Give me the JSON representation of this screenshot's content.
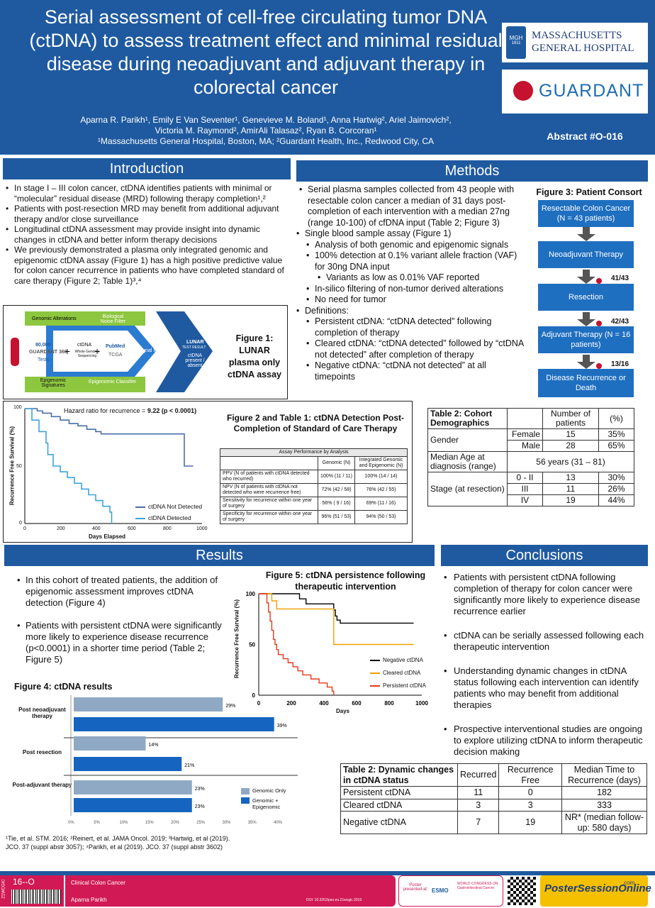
{
  "header": {
    "title": "Serial assessment of cell-free circulating tumor DNA (ctDNA) to assess treatment effect and minimal residual disease during neoadjuvant and adjuvant therapy in colorectal cancer",
    "authors_line1": "Aparna R. Parikh¹, Emily E Van Seventer¹, Genevieve M. Boland¹, Anna Hartwig², Ariel Jaimovich²,",
    "authors_line2": "Victoria M. Raymond², AmirAli Talasaz², Ryan B. Corcoran¹",
    "affiliations": "¹Massachusetts General Hospital, Boston, MA; ²Guardant Health, Inc., Redwood City, CA",
    "abstract_id": "Abstract #O-016",
    "mgh_logo_line1": "MASSACHUSETTS",
    "mgh_logo_line2": "GENERAL HOSPITAL",
    "mgh_seal": "MGH",
    "mgh_year": "1811",
    "guardant_logo": "GUARDANT"
  },
  "introduction": {
    "heading": "Introduction",
    "bullets": [
      "In stage I – III colon cancer, ctDNA identifies patients with minimal or “molecular” residual disease (MRD) following therapy completion¹,²",
      "Patients with post-resection MRD may benefit from additional adjuvant therapy and/or close surveillance",
      "Longitudinal ctDNA assessment may provide insight into dynamic changes in ctDNA and better inform therapy decisions",
      "We previously demonstrated a plasma only integrated genomic and epigenomic ctDNA assay (Figure 1) has a high positive predictive value for colon cancer recurrence in patients who have completed standard of care therapy (Figure 2; Table 1)³,⁴"
    ]
  },
  "figure1": {
    "caption": "Figure 1: LUNAR plasma only ctDNA assay",
    "genomic_alterations": "Genomic Alterations",
    "biological_noise": "Biological Noise Filter",
    "epigenomic_signatures": "Epigenomic Signatures",
    "epigenomic_classifier": "Epigenomic Classifier",
    "signal_integration": "Signal Integration",
    "tests_count": "80,000",
    "guardant360": "GUARDANT 360",
    "tests_label": "Tests",
    "ctdna_label": "ctDNA",
    "wgs_label": "Whole Genome Sequencing",
    "pubmed": "PubMed",
    "tcga": "TCGA",
    "lunar": "LUNAR",
    "test_result": "TEST RESULT",
    "result_text": "ctDNA present / absent"
  },
  "figure2": {
    "caption": "Figure 2 and Table 1: ctDNA Detection Post-Completion of Standard of Care Therapy",
    "hazard_label": "Hazard ratio for recurrence =",
    "hazard_value": "9.22 (p < 0.0001)",
    "ylabel": "Recurrence Free Survival (%)",
    "xlabel": "Days Elapsed",
    "legend_not_detected": "ctDNA Not Detected",
    "legend_detected": "ctDNA Detected",
    "y_ticks": [
      "100",
      "50",
      "0"
    ],
    "x_ticks": [
      "0",
      "200",
      "400",
      "600",
      "800",
      "1000"
    ],
    "table_title": "Assay Performance by Analysis",
    "table_head": [
      "",
      "Genomic (N)",
      "Integrated Genomic and Epigenomic (N)"
    ],
    "table_rows": [
      [
        "PPV (N of patients with ctDNA detected who recurred)",
        "100% (11 / 11)",
        "100% (14 / 14)"
      ],
      [
        "NPV (N of patients with ctDNA not detected who were recurrence free)",
        "72% (42 / 58)",
        "76% (42 / 55)"
      ],
      [
        "Sensitivity for recurrence within one year of surgery",
        "56% ( 9 / 16)",
        "69% (11 / 16)"
      ],
      [
        "Specificity for recurrence within one year of surgery",
        "96% (51 / 53)",
        "94% (50 / 53)"
      ]
    ]
  },
  "methods": {
    "heading": "Methods",
    "items": [
      {
        "level": 0,
        "text": "Serial plasma samples collected from 43 people with resectable colon cancer a median of 31 days post-completion of each intervention with a median 27ng (range 10-100) of cfDNA input (Table 2; Figure 3)"
      },
      {
        "level": 0,
        "text": "Single blood sample assay (Figure 1)"
      },
      {
        "level": 1,
        "text": "Analysis of both genomic and epigenomic signals"
      },
      {
        "level": 1,
        "text": "100% detection at 0.1% variant allele fraction (VAF) for 30ng DNA input"
      },
      {
        "level": 2,
        "text": "Variants as low as 0.01% VAF reported"
      },
      {
        "level": 1,
        "text": "In-silico filtering of non-tumor derived alterations"
      },
      {
        "level": 1,
        "text": "No need for tumor"
      },
      {
        "level": 0,
        "text": "Definitions:"
      },
      {
        "level": 1,
        "text": "Persistent ctDNA: “ctDNA detected” following completion of therapy"
      },
      {
        "level": 1,
        "text": "Cleared ctDNA: “ctDNA detected” followed by “ctDNA not detected” after completion of therapy"
      },
      {
        "level": 1,
        "text": "Negative ctDNA: “ctDNA not detected” at all timepoints"
      }
    ]
  },
  "figure3": {
    "caption": "Figure 3: Patient Consort",
    "boxes": [
      "Resectable Colon Cancer (N = 43 patients)",
      "Neoadjuvant Therapy",
      "Resection",
      "Adjuvant Therapy (N = 16 patients)",
      "Disease Recurrence or Death"
    ],
    "ratios": [
      "41/43",
      "42/43",
      "13/16"
    ]
  },
  "table2_demo": {
    "title": "Table 2: Cohort Demographics",
    "col_n": "Number of patients",
    "col_pct": "(%)",
    "gender": "Gender",
    "female": [
      "Female",
      "15",
      "35%"
    ],
    "male": [
      "Male",
      "28",
      "65%"
    ],
    "age_label": "Median Age at diagnosis (range)",
    "age_value": "56 years (31 – 81)",
    "stage": "Stage (at resection)",
    "stage_rows": [
      [
        "0 - II",
        "13",
        "30%"
      ],
      [
        "III",
        "11",
        "26%"
      ],
      [
        "IV",
        "19",
        "44%"
      ]
    ]
  },
  "results": {
    "heading": "Results",
    "bullets": [
      "In this cohort of treated patients, the addition of epigenomic assessment improves ctDNA detection (Figure 4)",
      "Patients with persistent ctDNA were significantly more likely to experience disease recurrence (p<0.0001) in a shorter time period (Table 2; Figure 5)"
    ]
  },
  "figure4": {
    "caption": "Figure 4: ctDNA results",
    "groups": [
      "Post neoadjuvant therapy",
      "Post resection",
      "Post-adjuvant therapy"
    ],
    "legend": [
      "Genomic Only",
      "Genomic + Epigenomic"
    ],
    "x_ticks": [
      "0%",
      "5%",
      "10%",
      "15%",
      "20%",
      "25%",
      "30%",
      "35%",
      "40%"
    ],
    "colors": {
      "genomic": "#8fa9c4",
      "integrated": "#1565c0"
    }
  },
  "chart_data": [
    {
      "type": "bar",
      "orientation": "horizontal",
      "title": "Figure 4: ctDNA results",
      "categories": [
        "Post neoadjuvant therapy",
        "Post resection",
        "Post-adjuvant therapy"
      ],
      "series": [
        {
          "name": "Genomic Only",
          "values": [
            29,
            14,
            23
          ]
        },
        {
          "name": "Genomic + Epigenomic",
          "values": [
            39,
            21,
            23
          ]
        }
      ],
      "data_labels": [
        "29%",
        "39%",
        "14%",
        "21%",
        "23%",
        "23%"
      ],
      "xlim": [
        0,
        40
      ],
      "legend": "right"
    },
    {
      "type": "line",
      "title": "Figure 5: ctDNA persistence following therapeutic intervention",
      "xlabel": "Days",
      "ylabel": "Recurrence Free Survival (%)",
      "xlim": [
        0,
        1000
      ],
      "ylim": [
        0,
        100
      ],
      "x_ticks": [
        "0",
        "200",
        "400",
        "600",
        "800",
        "1000"
      ],
      "y_ticks": [
        "0",
        "50",
        "100"
      ],
      "legend": "bottom-right",
      "series": [
        {
          "name": "Negative ctDNA",
          "color": "#000000",
          "x": [
            0,
            230,
            250,
            270,
            290,
            440,
            460,
            470,
            480,
            500,
            950
          ],
          "y": [
            100,
            100,
            95,
            95,
            90,
            90,
            84,
            78,
            74,
            71,
            71
          ]
        },
        {
          "name": "Cleared ctDNA",
          "color": "#f0a000",
          "x": [
            0,
            40,
            80,
            110,
            250,
            440,
            460,
            950
          ],
          "y": [
            100,
            100,
            93,
            85,
            85,
            85,
            50,
            50
          ]
        },
        {
          "name": "Persistent ctDNA",
          "color": "#e5391b",
          "x": [
            0,
            50,
            60,
            70,
            80,
            90,
            100,
            110,
            120,
            150,
            180,
            210,
            240,
            270,
            320,
            370,
            420,
            450,
            460
          ],
          "y": [
            100,
            91,
            82,
            73,
            64,
            55,
            50,
            45,
            40,
            36,
            32,
            28,
            24,
            20,
            16,
            12,
            8,
            4,
            0
          ]
        }
      ]
    },
    {
      "type": "line",
      "title": "Figure 2: ctDNA Detection Post-Completion of Standard of Care Therapy",
      "xlabel": "Days Elapsed",
      "ylabel": "Recurrence Free Survival (%)",
      "xlim": [
        0,
        1000
      ],
      "ylim": [
        0,
        100
      ],
      "series": [
        {
          "name": "ctDNA Not Detected",
          "color": "#4a6fa5",
          "x": [
            0,
            40,
            70,
            100,
            150,
            200,
            250,
            300,
            350,
            400,
            430,
            600,
            750,
            880,
            900,
            950
          ],
          "y": [
            100,
            100,
            98,
            96,
            93,
            90,
            87,
            85,
            82,
            80,
            78,
            78,
            78,
            78,
            50,
            50
          ]
        },
        {
          "name": "ctDNA Detected",
          "color": "#3ea3d9",
          "x": [
            0,
            40,
            80,
            120,
            130,
            160,
            200,
            240,
            280,
            320,
            360,
            400,
            440,
            480,
            490
          ],
          "y": [
            100,
            90,
            80,
            70,
            60,
            50,
            45,
            40,
            35,
            30,
            25,
            20,
            15,
            10,
            0
          ]
        }
      ]
    }
  ],
  "figure5": {
    "caption": "Figure 5: ctDNA persistence following therapeutic intervention",
    "legend": [
      "Negative ctDNA",
      "Cleared ctDNA",
      "Persistent ctDNA"
    ]
  },
  "conclusions": {
    "heading": "Conclusions",
    "bullets": [
      "Patients with persistent ctDNA following completion of therapy for colon cancer were significantly more likely to experience disease recurrence earlier",
      "ctDNA can be serially assessed following each therapeutic intervention",
      "Understanding dynamic changes in ctDNA status following each intervention can identify patients who may benefit from additional therapies",
      "Prospective interventional studies are ongoing to explore utilizing ctDNA to inform therapeutic decision making"
    ]
  },
  "table2_dynamic": {
    "head": [
      "Table 2: Dynamic changes in ctDNA status",
      "Recurred",
      "Recurrence Free",
      "Median Time to Recurrence (days)"
    ],
    "rows": [
      [
        "Persistent ctDNA",
        "11",
        "0",
        "182"
      ],
      [
        "Cleared ctDNA",
        "3",
        "3",
        "333"
      ],
      [
        "Negative ctDNA",
        "7",
        "19",
        "NR* (median follow-up: 580 days)"
      ]
    ]
  },
  "references": {
    "line1": "¹Tie, et al. STM. 2016; ²Reinert, et al. JAMA Oncol. 2019; ³Hartwig, et al (2019).",
    "line2": "JCO. 37 (suppl abstr 3057); ⁴Parikh, et al (2019). JCO. 37 (suppl abstr 3602)"
  },
  "footer": {
    "poster_id": "16--O",
    "side_code": "21WCGIC",
    "category": "Clinical Colon Cancer",
    "author": "Aparna Parikh",
    "doi": "DOI: 10.3252/pso.eu.21wcgic.2019",
    "presented_at": "Poster presented at:",
    "esmo": "ESMO",
    "congress": "WORLD CONGRESS ON Gastrointestinal Cancer",
    "poster_session": "PosterSessionOnline",
    "poster_session_com": ".com"
  }
}
